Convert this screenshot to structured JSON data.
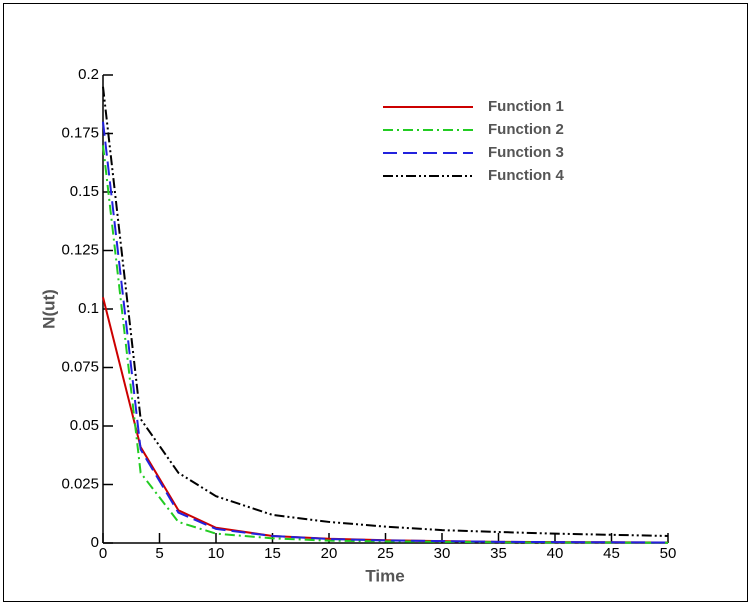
{
  "chart_data": {
    "type": "line",
    "x_label": "Time",
    "y_label": "N(ut)",
    "x": [
      0,
      3.33,
      6.67,
      10,
      15,
      20,
      25,
      30,
      35,
      40,
      45,
      50
    ],
    "series": [
      {
        "name": "Function 1",
        "color": "#cc0000",
        "dash": "none",
        "values": [
          0.105,
          0.041,
          0.014,
          0.0065,
          0.003,
          0.0018,
          0.0012,
          0.0008,
          0.0005,
          0.0004,
          0.0003,
          0.0002
        ]
      },
      {
        "name": "Function 2",
        "color": "#22cc22",
        "dash": "10,4,2,4",
        "values": [
          0.17,
          0.03,
          0.009,
          0.004,
          0.002,
          0.001,
          0.0007,
          0.0005,
          0.0003,
          0.0002,
          0.0002,
          0.0001
        ]
      },
      {
        "name": "Function 3",
        "color": "#2222dd",
        "dash": "14,6",
        "values": [
          0.18,
          0.04,
          0.013,
          0.006,
          0.003,
          0.0017,
          0.0011,
          0.0008,
          0.0005,
          0.0004,
          0.0003,
          0.0002
        ]
      },
      {
        "name": "Function 4",
        "color": "#000000",
        "dash": "10,3,2,3,2,3",
        "values": [
          0.195,
          0.053,
          0.03,
          0.02,
          0.012,
          0.009,
          0.007,
          0.0055,
          0.0047,
          0.004,
          0.0035,
          0.003
        ]
      }
    ],
    "xlim": [
      0,
      50
    ],
    "xticks": [
      0,
      5,
      10,
      15,
      20,
      25,
      30,
      35,
      40,
      45,
      50
    ],
    "ylim": [
      0,
      0.2
    ],
    "yticks": [
      0,
      0.025,
      0.05,
      0.075,
      0.1,
      0.125,
      0.15,
      0.175,
      0.2
    ]
  }
}
